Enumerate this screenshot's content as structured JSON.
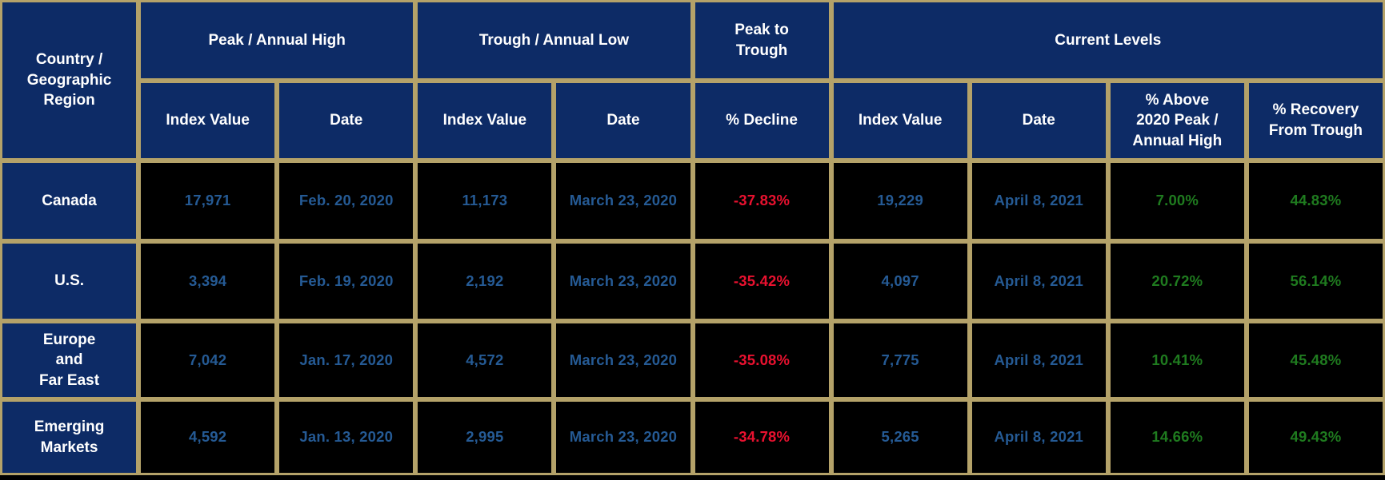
{
  "title": "Market Index Peak / Trough / Recovery Table",
  "colors": {
    "header_bg": "#0D2B66",
    "header_text": "#FFFFFF",
    "cell_bg": "#000000",
    "border": "#B4A269",
    "value_text": "#255A94",
    "decline_text": "#E8112F",
    "recovery_text": "#1F7B1F"
  },
  "header": {
    "country": "Country /\nGeographic\nRegion",
    "groups": {
      "peak": "Peak / Annual High",
      "trough": "Trough / Annual Low",
      "peak_to_trough": "Peak to\nTrough",
      "current": "Current Levels"
    },
    "subcolumns": {
      "peak_index": "Index Value",
      "peak_date": "Date",
      "trough_index": "Index Value",
      "trough_date": "Date",
      "pct_decline": "% Decline",
      "current_index": "Index Value",
      "current_date": "Date",
      "pct_above": "% Above\n2020 Peak /\nAnnual High",
      "pct_recovery": "% Recovery\nFrom Trough"
    }
  },
  "rows": [
    {
      "region": "Canada",
      "peak_index": "17,971",
      "peak_date": "Feb. 20, 2020",
      "trough_index": "11,173",
      "trough_date": "March 23, 2020",
      "pct_decline": "-37.83%",
      "current_index": "19,229",
      "current_date": "April 8, 2021",
      "pct_above": "7.00%",
      "pct_recovery": "44.83%"
    },
    {
      "region": "U.S.",
      "peak_index": "3,394",
      "peak_date": "Feb. 19, 2020",
      "trough_index": "2,192",
      "trough_date": "March 23, 2020",
      "pct_decline": "-35.42%",
      "current_index": "4,097",
      "current_date": "April 8, 2021",
      "pct_above": "20.72%",
      "pct_recovery": "56.14%"
    },
    {
      "region": "Europe\nand\nFar East",
      "peak_index": "7,042",
      "peak_date": "Jan. 17, 2020",
      "trough_index": "4,572",
      "trough_date": "March 23, 2020",
      "pct_decline": "-35.08%",
      "current_index": "7,775",
      "current_date": "April 8, 2021",
      "pct_above": "10.41%",
      "pct_recovery": "45.48%"
    },
    {
      "region": "Emerging\nMarkets",
      "peak_index": "4,592",
      "peak_date": "Jan. 13, 2020",
      "trough_index": "2,995",
      "trough_date": "March 23, 2020",
      "pct_decline": "-34.78%",
      "current_index": "5,265",
      "current_date": "April 8, 2021",
      "pct_above": "14.66%",
      "pct_recovery": "49.43%"
    }
  ],
  "chart_data": {
    "type": "table",
    "column_groups": [
      "Peak / Annual High",
      "Trough / Annual Low",
      "Peak to Trough",
      "Current Levels"
    ],
    "columns": [
      "Country / Geographic Region",
      "Peak Index Value",
      "Peak Date",
      "Trough Index Value",
      "Trough Date",
      "% Decline",
      "Current Index Value",
      "Current Date",
      "% Above 2020 Peak / Annual High",
      "% Recovery From Trough"
    ],
    "rows": [
      [
        "Canada",
        17971,
        "Feb. 20, 2020",
        11173,
        "March 23, 2020",
        -37.83,
        19229,
        "April 8, 2021",
        7.0,
        44.83
      ],
      [
        "U.S.",
        3394,
        "Feb. 19, 2020",
        2192,
        "March 23, 2020",
        -35.42,
        4097,
        "April 8, 2021",
        20.72,
        56.14
      ],
      [
        "Europe and Far East",
        7042,
        "Jan. 17, 2020",
        4572,
        "March 23, 2020",
        -35.08,
        7775,
        "April 8, 2021",
        10.41,
        45.48
      ],
      [
        "Emerging Markets",
        4592,
        "Jan. 13, 2020",
        2995,
        "March 23, 2020",
        -34.78,
        5265,
        "April 8, 2021",
        14.66,
        49.43
      ]
    ]
  }
}
